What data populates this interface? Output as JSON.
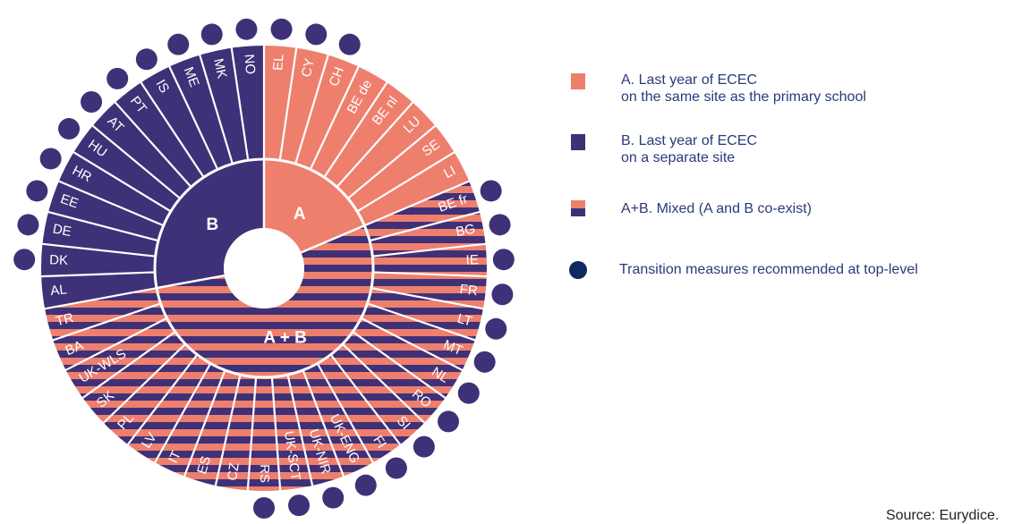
{
  "chart_data": {
    "type": "radial",
    "categories": [
      {
        "label": "A",
        "name": "A. Last year of ECEC on the same site as the primary school",
        "color": "#ee7f6d"
      },
      {
        "label": "B",
        "name": "B. Last year of ECEC on a separate site",
        "color": "#3f3177"
      },
      {
        "label": "A + B",
        "name": "A+B. Mixed (A and B co-exist)",
        "color": "mixed"
      }
    ],
    "countries": [
      {
        "code": "EL",
        "category": "A",
        "transition": true
      },
      {
        "code": "CY",
        "category": "A",
        "transition": true
      },
      {
        "code": "CH",
        "category": "A",
        "transition": true
      },
      {
        "code": "BE de",
        "category": "A",
        "transition": false
      },
      {
        "code": "BE nl",
        "category": "A",
        "transition": false
      },
      {
        "code": "LU",
        "category": "A",
        "transition": false
      },
      {
        "code": "SE",
        "category": "A",
        "transition": false
      },
      {
        "code": "LI",
        "category": "A",
        "transition": false
      },
      {
        "code": "BE fr",
        "category": "A + B",
        "transition": true
      },
      {
        "code": "BG",
        "category": "A + B",
        "transition": true
      },
      {
        "code": "IE",
        "category": "A + B",
        "transition": true
      },
      {
        "code": "FR",
        "category": "A + B",
        "transition": true
      },
      {
        "code": "LT",
        "category": "A + B",
        "transition": true
      },
      {
        "code": "MT",
        "category": "A + B",
        "transition": true
      },
      {
        "code": "NL",
        "category": "A + B",
        "transition": true
      },
      {
        "code": "RO",
        "category": "A + B",
        "transition": true
      },
      {
        "code": "SI",
        "category": "A + B",
        "transition": true
      },
      {
        "code": "FI",
        "category": "A + B",
        "transition": true
      },
      {
        "code": "UK-ENG",
        "category": "A + B",
        "transition": true
      },
      {
        "code": "UK-NIR",
        "category": "A + B",
        "transition": true
      },
      {
        "code": "UK-SCT",
        "category": "A + B",
        "transition": true
      },
      {
        "code": "RS",
        "category": "A + B",
        "transition": true
      },
      {
        "code": "CZ",
        "category": "A + B",
        "transition": false
      },
      {
        "code": "ES",
        "category": "A + B",
        "transition": false
      },
      {
        "code": "IT",
        "category": "A + B",
        "transition": false
      },
      {
        "code": "LV",
        "category": "A + B",
        "transition": false
      },
      {
        "code": "PL",
        "category": "A + B",
        "transition": false
      },
      {
        "code": "SK",
        "category": "A + B",
        "transition": false
      },
      {
        "code": "UK-WLS",
        "category": "A + B",
        "transition": false
      },
      {
        "code": "BA",
        "category": "A + B",
        "transition": false
      },
      {
        "code": "TR",
        "category": "A + B",
        "transition": false
      },
      {
        "code": "AL",
        "category": "B",
        "transition": false
      },
      {
        "code": "DK",
        "category": "B",
        "transition": true
      },
      {
        "code": "DE",
        "category": "B",
        "transition": true
      },
      {
        "code": "EE",
        "category": "B",
        "transition": true
      },
      {
        "code": "HR",
        "category": "B",
        "transition": true
      },
      {
        "code": "HU",
        "category": "B",
        "transition": true
      },
      {
        "code": "AT",
        "category": "B",
        "transition": true
      },
      {
        "code": "PT",
        "category": "B",
        "transition": true
      },
      {
        "code": "IS",
        "category": "B",
        "transition": true
      },
      {
        "code": "ME",
        "category": "B",
        "transition": true
      },
      {
        "code": "MK",
        "category": "B",
        "transition": true
      },
      {
        "code": "NO",
        "category": "B",
        "transition": true
      }
    ],
    "colors": {
      "a": "#ee7f6d",
      "b": "#3f3177",
      "transition": "#3f3177"
    }
  },
  "legend": {
    "a_line1": "A. Last year of ECEC",
    "a_line2": "on the same site as the primary school",
    "b_line1": "B. Last year of ECEC",
    "b_line2": "on a separate site",
    "ab": "A+B. Mixed (A and B co-exist)",
    "transition": "Transition measures recommended at top-level"
  },
  "source": "Source: Eurydice."
}
